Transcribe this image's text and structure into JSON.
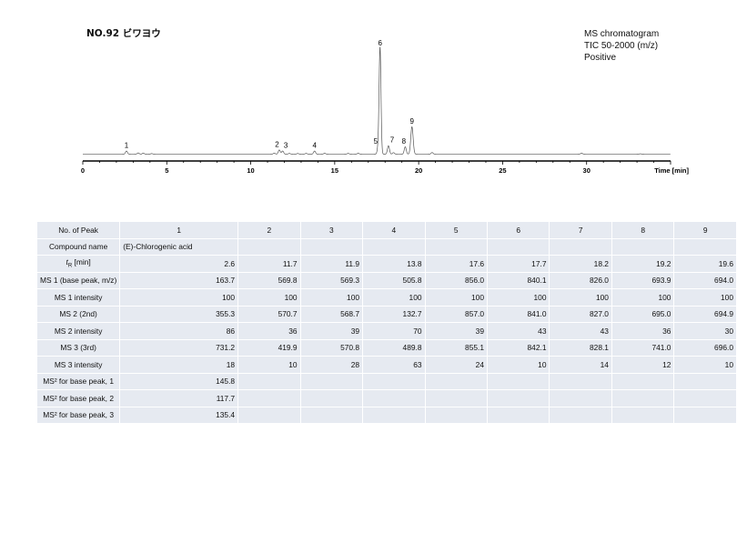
{
  "sample": {
    "title": "NO.92 ビワヨウ"
  },
  "info": {
    "line1": "MS chromatogram",
    "line2": "TIC 50-2000 (m/z)",
    "line3": "Positive"
  },
  "chart_data": {
    "type": "line",
    "xlabel": "Time [min]",
    "xlim": [
      0,
      35
    ],
    "x_ticks": [
      0,
      5,
      10,
      15,
      20,
      25,
      30
    ],
    "ylim": [
      0,
      100
    ],
    "grid": false,
    "peaks": [
      {
        "label": "1",
        "x": 2.6,
        "y": 3
      },
      {
        "label": "2",
        "x": 11.7,
        "y": 4
      },
      {
        "label": "3",
        "x": 11.9,
        "y": 3
      },
      {
        "label": "4",
        "x": 13.8,
        "y": 3
      },
      {
        "label": "5",
        "x": 17.6,
        "y": 7
      },
      {
        "label": "6",
        "x": 17.7,
        "y": 100
      },
      {
        "label": "7",
        "x": 18.2,
        "y": 8
      },
      {
        "label": "8",
        "x": 19.2,
        "y": 7
      },
      {
        "label": "9",
        "x": 19.6,
        "y": 26
      }
    ]
  },
  "table": {
    "header_label": "No. of Peak",
    "peak_numbers": [
      "1",
      "2",
      "3",
      "4",
      "5",
      "6",
      "7",
      "8",
      "9"
    ],
    "rows": [
      {
        "label": "Compound name",
        "values": [
          "(E)-Chlorogenic acid",
          "",
          "",
          "",
          "",
          "",
          "",
          "",
          ""
        ],
        "align": "left"
      },
      {
        "label_html": "t_R [min]",
        "values": [
          "2.6",
          "11.7",
          "11.9",
          "13.8",
          "17.6",
          "17.7",
          "18.2",
          "19.2",
          "19.6"
        ]
      },
      {
        "label": "MS 1 (base peak, m/z)",
        "values": [
          "163.7",
          "569.8",
          "569.3",
          "505.8",
          "856.0",
          "840.1",
          "826.0",
          "693.9",
          "694.0"
        ]
      },
      {
        "label": "MS 1 intensity",
        "values": [
          "100",
          "100",
          "100",
          "100",
          "100",
          "100",
          "100",
          "100",
          "100"
        ]
      },
      {
        "label": "MS 2 (2nd)",
        "values": [
          "355.3",
          "570.7",
          "568.7",
          "132.7",
          "857.0",
          "841.0",
          "827.0",
          "695.0",
          "694.9"
        ]
      },
      {
        "label": "MS 2 intensity",
        "values": [
          "86",
          "36",
          "39",
          "70",
          "39",
          "43",
          "43",
          "36",
          "30"
        ]
      },
      {
        "label": "MS 3 (3rd)",
        "values": [
          "731.2",
          "419.9",
          "570.8",
          "489.8",
          "855.1",
          "842.1",
          "828.1",
          "741.0",
          "696.0"
        ]
      },
      {
        "label": "MS 3 intensity",
        "values": [
          "18",
          "10",
          "28",
          "63",
          "24",
          "10",
          "14",
          "12",
          "10"
        ]
      },
      {
        "label": "MS² for base peak, 1",
        "values": [
          "145.8",
          "",
          "",
          "",
          "",
          "",
          "",
          "",
          ""
        ]
      },
      {
        "label": "MS² for base peak, 2",
        "values": [
          "117.7",
          "",
          "",
          "",
          "",
          "",
          "",
          "",
          ""
        ]
      },
      {
        "label": "MS² for base peak, 3",
        "values": [
          "135.4",
          "",
          "",
          "",
          "",
          "",
          "",
          "",
          ""
        ]
      }
    ]
  }
}
